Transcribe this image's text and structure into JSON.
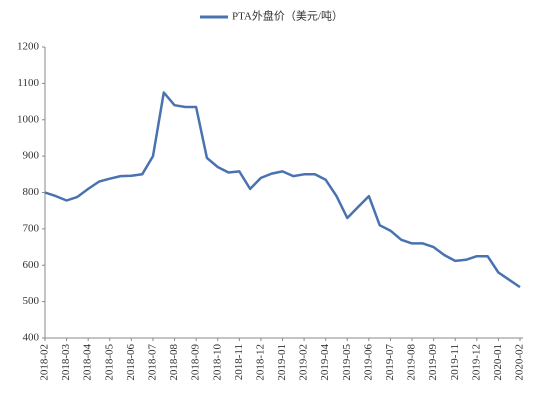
{
  "chart_data": {
    "type": "line",
    "categories": [
      "2018-02",
      null,
      "2018-03",
      null,
      "2018-04",
      null,
      "2018-05",
      null,
      "2018-06",
      null,
      "2018-07",
      null,
      "2018-08",
      null,
      "2018-09",
      null,
      "2018-10",
      null,
      "2018-11",
      null,
      "2018-12",
      null,
      "2019-01",
      null,
      "2019-02",
      null,
      "2019-04",
      null,
      "2019-05",
      null,
      "2019-06",
      null,
      "2019-07",
      null,
      "2019-08",
      null,
      "2019-09",
      null,
      "2019-11",
      null,
      "2019-12",
      null,
      "2020-01",
      null,
      "2020-02"
    ],
    "series": [
      {
        "name": "PTA外盘价（美元/吨）",
        "color": "#4a72b0",
        "values": [
          800,
          790,
          778,
          788,
          810,
          830,
          838,
          845,
          846,
          850,
          900,
          1075,
          1040,
          1035,
          1035,
          895,
          870,
          855,
          858,
          810,
          840,
          852,
          858,
          845,
          850,
          850,
          835,
          790,
          730,
          760,
          790,
          710,
          695,
          670,
          660,
          660,
          650,
          628,
          612,
          615,
          625,
          625,
          580,
          560,
          540
        ]
      }
    ],
    "ylim": [
      400,
      1200
    ],
    "yticks": [
      400,
      500,
      600,
      700,
      800,
      900,
      1000,
      1100,
      1200
    ],
    "grid": false,
    "legend": "top"
  }
}
